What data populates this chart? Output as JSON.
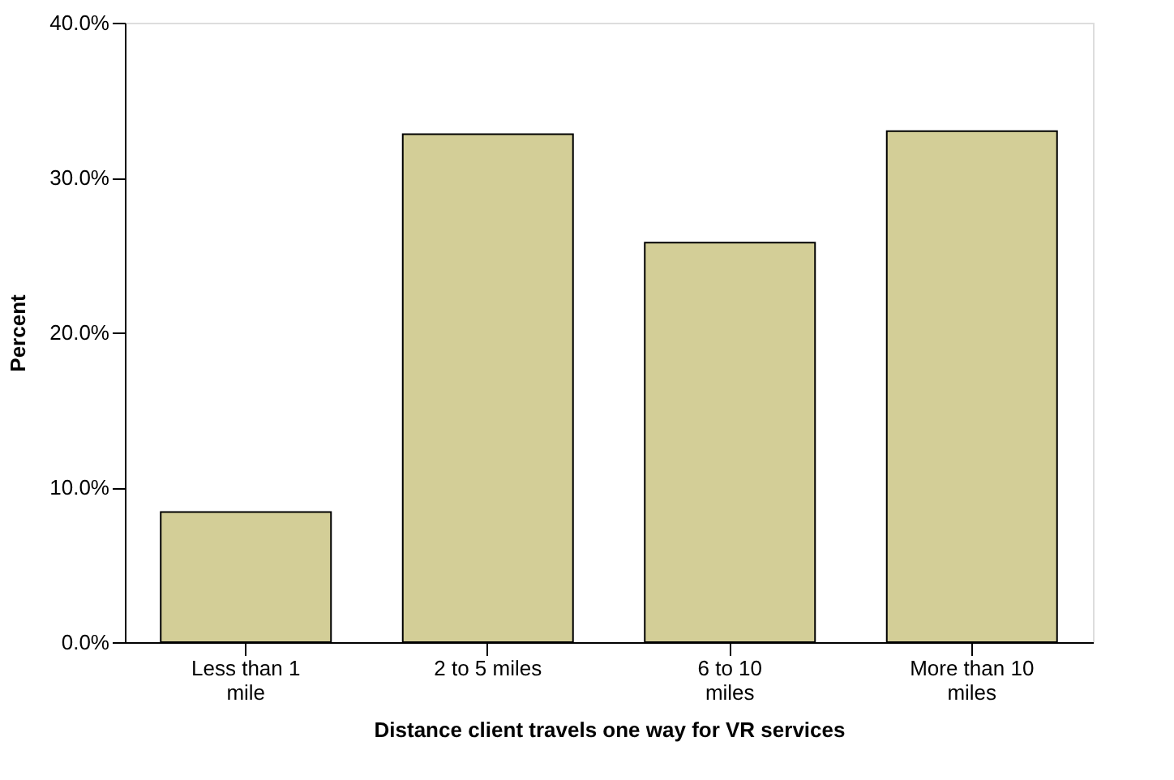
{
  "chart_data": {
    "type": "bar",
    "xlabel": "Distance client travels one way for VR services",
    "ylabel": "Percent",
    "categories": [
      "Less than 1 mile",
      "2 to 5 miles",
      "6 to 10 miles",
      "More than 10 miles"
    ],
    "values": [
      8.4,
      32.8,
      25.8,
      33.0
    ],
    "color": "#d3ce97",
    "ylim": [
      0,
      40
    ],
    "yticks": [
      {
        "value": 0,
        "label": "0.0%"
      },
      {
        "value": 10,
        "label": "10.0%"
      },
      {
        "value": 20,
        "label": "20.0%"
      },
      {
        "value": 30,
        "label": "30.0%"
      },
      {
        "value": 40,
        "label": "40.0%"
      }
    ],
    "grid": false
  }
}
